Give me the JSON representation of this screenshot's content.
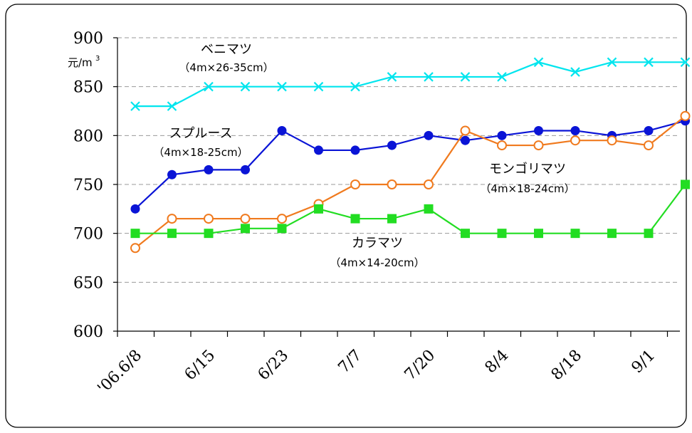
{
  "chart_data": {
    "type": "line",
    "ylim": [
      600,
      900
    ],
    "yticks": [
      600,
      650,
      700,
      750,
      800,
      850,
      900
    ],
    "unit": {
      "main": "元/m",
      "sup": "3"
    },
    "x_points": 16,
    "xtick_labels": [
      "'06.6/8",
      "6/15",
      "6/23",
      "7/7",
      "7/20",
      "8/4",
      "8/18",
      "9/1"
    ],
    "grid": "horizontal-dashed",
    "series": [
      {
        "name": "ベニマツ",
        "spec": "（4m×26-35cm）",
        "color": "#00e5ee",
        "marker": "x",
        "values": [
          830,
          830,
          850,
          850,
          850,
          850,
          850,
          860,
          860,
          860,
          860,
          875,
          865,
          875,
          875,
          875
        ]
      },
      {
        "name": "スプルース",
        "spec": "（4m×18-25cm）",
        "color": "#0a14d6",
        "marker": "filled-circle",
        "values": [
          725,
          760,
          765,
          765,
          805,
          785,
          785,
          790,
          800,
          795,
          800,
          805,
          805,
          800,
          805,
          815
        ]
      },
      {
        "name": "モンゴリマツ",
        "spec": "（4m×18-24cm）",
        "color": "#f07a1e",
        "marker": "open-circle",
        "values": [
          685,
          715,
          715,
          715,
          715,
          730,
          750,
          750,
          750,
          805,
          790,
          790,
          795,
          795,
          790,
          820
        ]
      },
      {
        "name": "カラマツ",
        "spec": "（4m×14-20cm）",
        "color": "#22dd22",
        "marker": "filled-square",
        "values": [
          700,
          700,
          700,
          705,
          705,
          725,
          715,
          715,
          725,
          700,
          700,
          700,
          700,
          700,
          700,
          750
        ]
      }
    ]
  }
}
